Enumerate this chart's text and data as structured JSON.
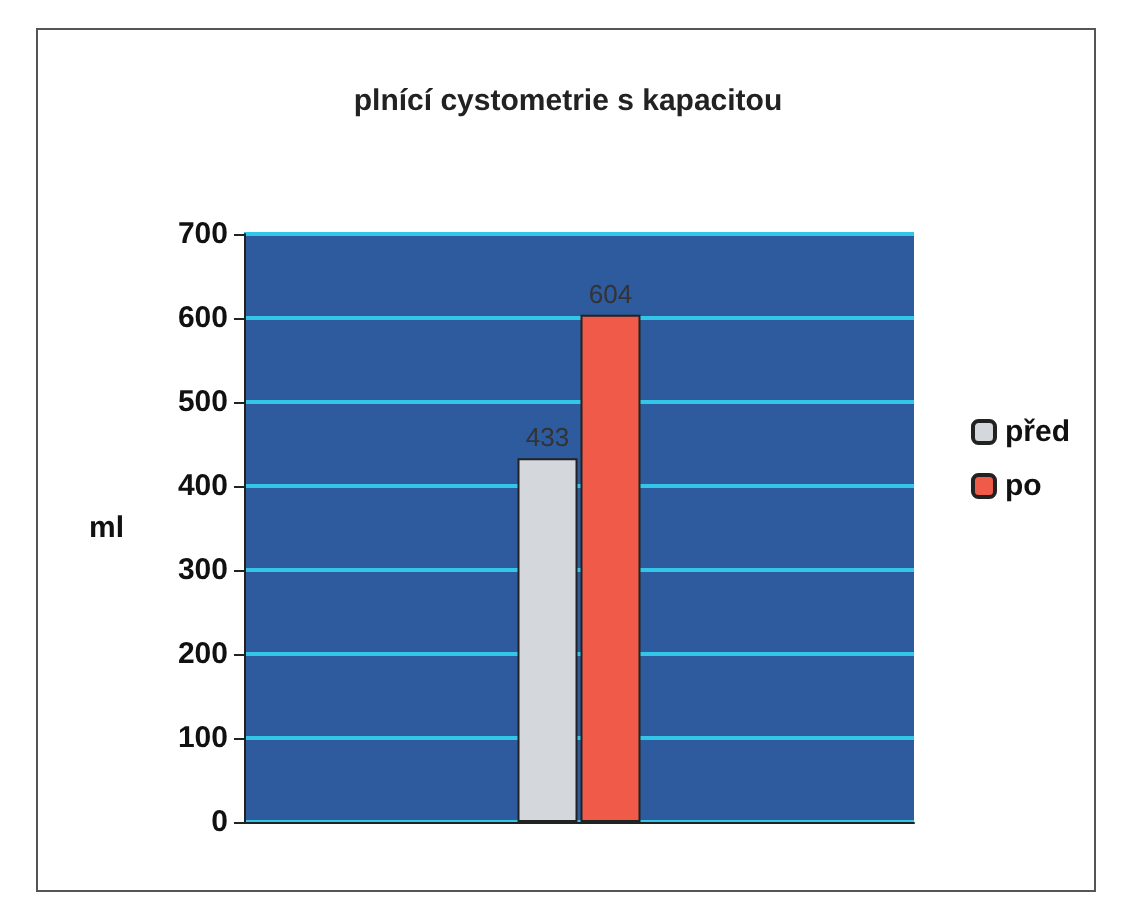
{
  "chart_data": {
    "type": "bar",
    "title": "plnící cystometrie s kapacitou",
    "ylabel": "ml",
    "categories": [
      null
    ],
    "series": [
      {
        "name": "před",
        "color": "#d4d8dc",
        "values": [
          433
        ]
      },
      {
        "name": "po",
        "color": "#f05a48",
        "values": [
          604
        ]
      }
    ],
    "ylim": [
      0,
      700
    ],
    "yticks": [
      0,
      100,
      200,
      300,
      400,
      500,
      600,
      700
    ],
    "grid": "y",
    "legend": "right",
    "data_labels": true
  }
}
